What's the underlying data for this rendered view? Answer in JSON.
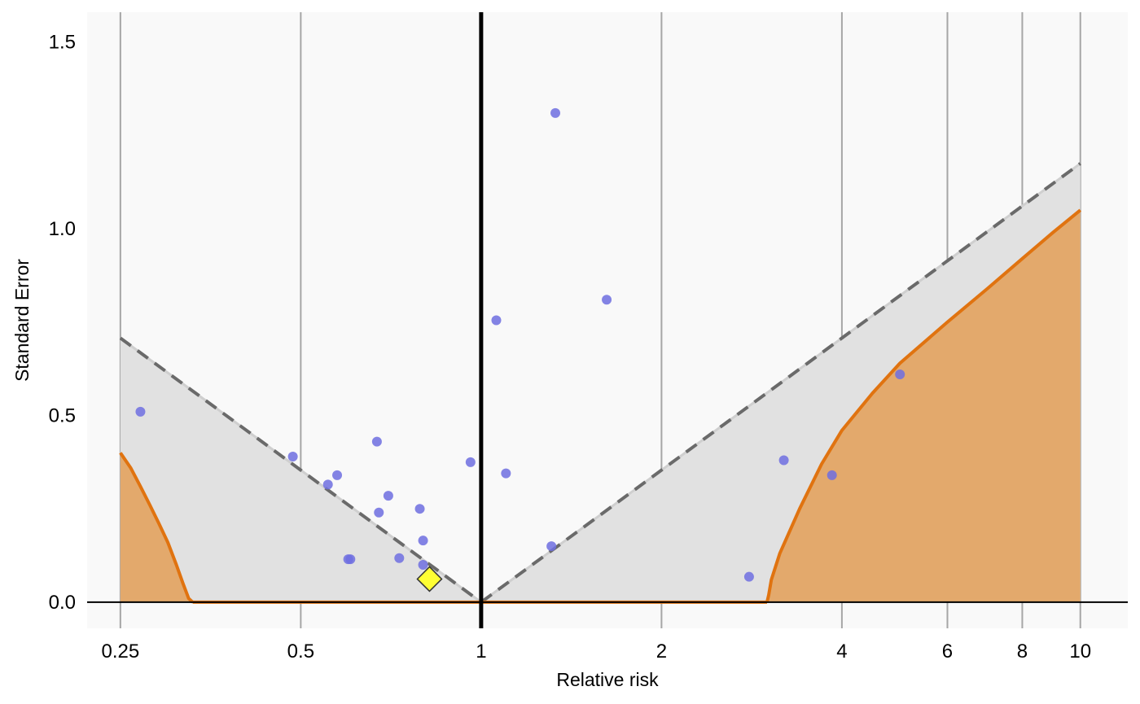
{
  "chart_data": {
    "type": "scatter",
    "title": "",
    "xlabel": "Relative risk",
    "ylabel": "Standard Error",
    "x_scale": "log",
    "x_ticks": [
      0.25,
      0.5,
      1,
      2,
      4,
      6,
      8,
      10
    ],
    "x_tick_labels": [
      "0.25",
      "0.5",
      "1",
      "2",
      "4",
      "6",
      "8",
      "10"
    ],
    "y_ticks": [
      0.0,
      0.5,
      1.0,
      1.5
    ],
    "y_tick_labels": [
      "0.0",
      "0.5",
      "1.0",
      "1.5"
    ],
    "xlim": [
      0.22,
      12.0
    ],
    "ylim": [
      -0.07,
      1.58
    ],
    "grid": "vertical",
    "null_line_x": 1,
    "pooled_estimate": {
      "x": 0.82,
      "y": 0.062
    },
    "significance_contour_slope": 1.96,
    "power_curve_left": [
      [
        0.25,
        0.4
      ],
      [
        0.26,
        0.36
      ],
      [
        0.27,
        0.31
      ],
      [
        0.28,
        0.26
      ],
      [
        0.29,
        0.21
      ],
      [
        0.3,
        0.16
      ],
      [
        0.31,
        0.1
      ],
      [
        0.318,
        0.05
      ],
      [
        0.325,
        0.01
      ],
      [
        0.33,
        0.0
      ]
    ],
    "power_curve_right": [
      [
        3.0,
        0.0
      ],
      [
        3.02,
        0.02
      ],
      [
        3.05,
        0.06
      ],
      [
        3.15,
        0.13
      ],
      [
        3.4,
        0.25
      ],
      [
        3.7,
        0.37
      ],
      [
        4.0,
        0.46
      ],
      [
        4.5,
        0.56
      ],
      [
        5.0,
        0.64
      ],
      [
        6.0,
        0.75
      ],
      [
        7.0,
        0.84
      ],
      [
        8.0,
        0.92
      ],
      [
        9.0,
        0.99
      ],
      [
        10.0,
        1.05
      ]
    ],
    "studies": [
      {
        "x": 0.27,
        "y": 0.51
      },
      {
        "x": 0.485,
        "y": 0.39
      },
      {
        "x": 0.555,
        "y": 0.315
      },
      {
        "x": 0.575,
        "y": 0.34
      },
      {
        "x": 0.6,
        "y": 0.115
      },
      {
        "x": 0.605,
        "y": 0.115
      },
      {
        "x": 0.67,
        "y": 0.43
      },
      {
        "x": 0.675,
        "y": 0.24
      },
      {
        "x": 0.7,
        "y": 0.285
      },
      {
        "x": 0.73,
        "y": 0.118
      },
      {
        "x": 0.79,
        "y": 0.25
      },
      {
        "x": 0.8,
        "y": 0.165
      },
      {
        "x": 0.8,
        "y": 0.1
      },
      {
        "x": 0.96,
        "y": 0.375
      },
      {
        "x": 1.06,
        "y": 0.755
      },
      {
        "x": 1.1,
        "y": 0.345
      },
      {
        "x": 1.31,
        "y": 0.15
      },
      {
        "x": 1.33,
        "y": 1.31
      },
      {
        "x": 1.62,
        "y": 0.81
      },
      {
        "x": 2.8,
        "y": 0.068
      },
      {
        "x": 3.2,
        "y": 0.38
      },
      {
        "x": 3.85,
        "y": 0.34
      },
      {
        "x": 5.0,
        "y": 0.61
      }
    ],
    "colors": {
      "panel_background": "#f9f9f9",
      "funnel_fill": "#e1e1e1",
      "funnel_line": "#6a6a6a",
      "power_fill": "#e3a96c",
      "power_line": "#e07310",
      "point": "#6e6ee0",
      "pooled": "#ffff33",
      "grid": "#a6a6a6"
    }
  }
}
